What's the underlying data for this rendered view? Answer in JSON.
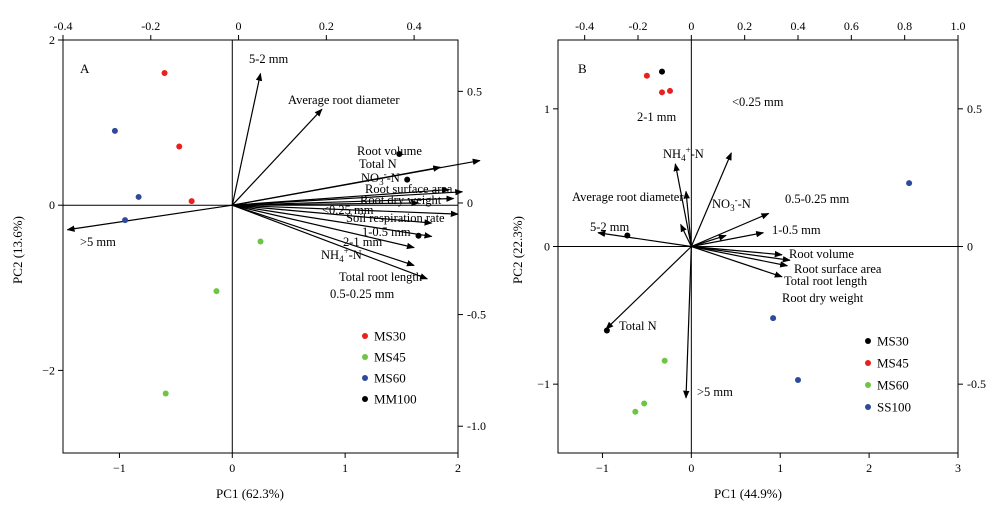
{
  "chart_data": [
    {
      "type": "scatter",
      "panel_label": "A",
      "xlabel": "PC1 (62.3%)",
      "ylabel": "PC2 (13.6%)",
      "xlim": [
        -1.5,
        2
      ],
      "ylim": [
        -3,
        2
      ],
      "x_ticks": [
        -1,
        0,
        1,
        2
      ],
      "y_ticks": [
        -2,
        0,
        2
      ],
      "loading_xlim": [
        -0.4,
        0.5
      ],
      "loading_ylim": [
        -1.12,
        0.73
      ],
      "top_ticks": [
        -0.4,
        -0.2,
        0,
        0.2,
        0.4
      ],
      "right_ticks": [
        0.5,
        0,
        -0.5,
        -1.0
      ],
      "top_tick_labels": [
        "-0.4",
        "-0.2",
        "0",
        "0.2",
        "0.4"
      ],
      "right_tick_labels": [
        "0.5",
        "0",
        "-0.5",
        "-1.0"
      ],
      "legend_position": "bottom-right",
      "series": [
        {
          "name": "MS30",
          "color": "#e8201f",
          "points": [
            [
              -0.6,
              1.6
            ],
            [
              -0.47,
              0.71
            ],
            [
              -0.36,
              0.05
            ]
          ]
        },
        {
          "name": "MS45",
          "color": "#6cc644",
          "points": [
            [
              0.25,
              -0.44
            ],
            [
              -0.14,
              -1.04
            ],
            [
              -0.59,
              -2.28
            ]
          ]
        },
        {
          "name": "MS60",
          "color": "#2e4a9a",
          "points": [
            [
              -1.04,
              0.9
            ],
            [
              -0.83,
              0.1
            ],
            [
              -0.95,
              -0.18
            ]
          ]
        },
        {
          "name": "MM100",
          "color": "#000000",
          "points": [
            [
              1.48,
              0.62
            ],
            [
              1.55,
              0.31
            ],
            [
              1.65,
              -0.37
            ]
          ]
        }
      ],
      "loadings": [
        {
          "name": "5-2 mm",
          "x": 0.05,
          "y": 0.58
        },
        {
          "name": "Average root diameter",
          "x": 0.19,
          "y": 0.42
        },
        {
          "name": "Root volume",
          "x": 0.55,
          "y": 0.19
        },
        {
          "name": "Total N",
          "x": 0.46,
          "y": 0.16
        },
        {
          "name": "NO3--N",
          "x": 0.48,
          "y": 0.06
        },
        {
          "name": "Root surface area",
          "x": 0.51,
          "y": 0.05
        },
        {
          "name": "Root dry weight",
          "x": 0.49,
          "y": 0.02
        },
        {
          "name": "<0.25 mm",
          "x": 0.41,
          "y": 0.0
        },
        {
          "name": "Soil respiration rate",
          "x": 0.5,
          "y": -0.05
        },
        {
          "name": "1-0.5 mm",
          "x": 0.44,
          "y": -0.09
        },
        {
          "name": "2-1 mm",
          "x": 0.44,
          "y": -0.15
        },
        {
          "name": "NH4+-N",
          "x": 0.4,
          "y": -0.2
        },
        {
          "name": "Total root length",
          "x": 0.4,
          "y": -0.28
        },
        {
          "name": "0.5-0.25 mm",
          "x": 0.43,
          "y": -0.34
        },
        {
          "name": ">5 mm",
          "x": -0.39,
          "y": -0.12
        }
      ],
      "loading_labels": {
        "5-2 mm": "5-2 mm",
        "Average root diameter": "Average root diameter",
        "Root volume": "Root volume",
        "Total N": "Total N",
        "NO3--N": {
          "pre": "NO",
          "sub": "3",
          "sup": "-",
          "post": "-N"
        },
        "Root surface area": "Root surface area",
        "Root dry weight": "Root dry weight",
        "<0.25 mm": "<0.25 mm",
        "Soil respiration rate": "Soil respiration rate",
        "1-0.5 mm": "1-0.5 mm",
        "2-1 mm": "2-1 mm",
        "NH4+-N": {
          "pre": "NH",
          "sub": "4",
          "sup": "+",
          "post": "-N"
        },
        "Total root length": "Total root length",
        "0.5-0.25 mm": "0.5-0.25 mm",
        ">5 mm": ">5 mm"
      }
    },
    {
      "type": "scatter",
      "panel_label": "B",
      "xlabel": "PC1 (44.9%)",
      "ylabel": "PC2 (22.3%)",
      "xlim": [
        -1.5,
        3
      ],
      "ylim": [
        -1.5,
        1.5
      ],
      "x_ticks": [
        -1,
        0,
        1,
        2,
        3
      ],
      "y_ticks": [
        -1,
        0,
        1
      ],
      "loading_xlim": [
        -0.5,
        1.0
      ],
      "loading_ylim": [
        -0.75,
        0.75
      ],
      "top_ticks": [
        -0.4,
        -0.2,
        0,
        0.2,
        0.4,
        0.6,
        0.8,
        1.0
      ],
      "right_ticks": [
        0.5,
        0,
        -0.5
      ],
      "top_tick_labels": [
        "-0.4",
        "-0.2",
        "0",
        "0.2",
        "0.4",
        "0.6",
        "0.8",
        "1.0"
      ],
      "right_tick_labels": [
        "0.5",
        "0",
        "-0.5"
      ],
      "legend_position": "bottom-right",
      "series": [
        {
          "name": "MS30",
          "color": "#000000",
          "points": [
            [
              -0.33,
              1.27
            ],
            [
              -0.72,
              0.08
            ],
            [
              -0.95,
              -0.61
            ]
          ]
        },
        {
          "name": "MS45",
          "color": "#e8201f",
          "points": [
            [
              -0.5,
              1.24
            ],
            [
              -0.33,
              1.12
            ],
            [
              -0.24,
              1.13
            ]
          ]
        },
        {
          "name": "MS60",
          "color": "#6cc644",
          "points": [
            [
              -0.3,
              -0.83
            ],
            [
              -0.53,
              -1.14
            ],
            [
              -0.63,
              -1.2
            ]
          ]
        },
        {
          "name": "SS100",
          "color": "#2e4a9a",
          "points": [
            [
              2.45,
              0.46
            ],
            [
              0.92,
              -0.52
            ],
            [
              1.2,
              -0.97
            ]
          ]
        }
      ],
      "loadings": [
        {
          "name": "<0.25 mm",
          "x": 0.15,
          "y": 0.34
        },
        {
          "name": "2-1 mm",
          "x": -0.06,
          "y": 0.3
        },
        {
          "name": "NH4+-N",
          "x": -0.02,
          "y": 0.2
        },
        {
          "name": "Average root diameter",
          "x": -0.04,
          "y": 0.08
        },
        {
          "name": "NO3--N",
          "x": 0.13,
          "y": 0.04
        },
        {
          "name": "0.5-0.25 mm",
          "x": 0.29,
          "y": 0.12
        },
        {
          "name": "1-0.5 mm",
          "x": 0.27,
          "y": 0.05
        },
        {
          "name": "Root volume",
          "x": 0.34,
          "y": -0.03
        },
        {
          "name": "Root surface area",
          "x": 0.37,
          "y": -0.05
        },
        {
          "name": "Total root length",
          "x": 0.36,
          "y": -0.07
        },
        {
          "name": "Root dry weight",
          "x": 0.34,
          "y": -0.11
        },
        {
          "name": "5-2 mm",
          "x": -0.35,
          "y": 0.05
        },
        {
          "name": "Total N",
          "x": -0.32,
          "y": -0.3
        },
        {
          "name": ">5 mm",
          "x": -0.02,
          "y": -0.55
        }
      ],
      "loading_labels": {
        "<0.25 mm": "<0.25 mm",
        "2-1 mm": "2-1 mm",
        "NH4+-N": {
          "pre": "NH",
          "sub": "4",
          "sup": "+",
          "post": "-N"
        },
        "Average root diameter": "Average root diameter",
        "NO3--N": {
          "pre": "NO",
          "sub": "3",
          "sup": "-",
          "post": "-N"
        },
        "0.5-0.25 mm": "0.5-0.25 mm",
        "1-0.5 mm": "1-0.5 mm",
        "Root volume": "Root volume",
        "Root surface area": "Root surface area",
        "Total root length": "Total root length",
        "Root dry weight": "Root dry weight",
        "5-2 mm": "5-2 mm",
        "Total N": "Total N",
        ">5 mm": ">5 mm"
      }
    }
  ]
}
